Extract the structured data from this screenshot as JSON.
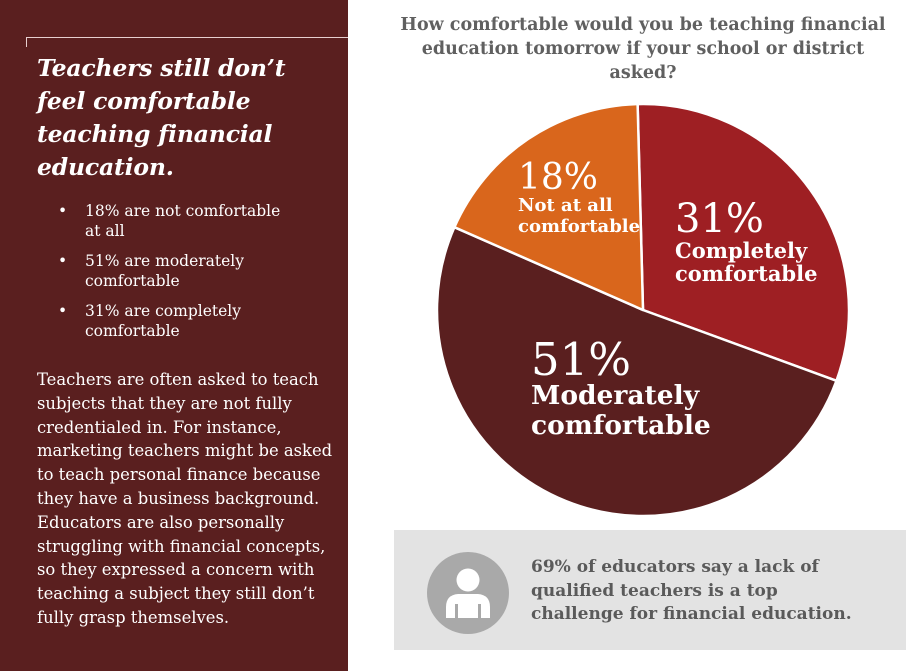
{
  "sidebar": {
    "headline": "Teachers still don’t feel comfortable teaching financial education.",
    "bullets": [
      "18% are not comfortable at all",
      "51% are moderately comfortable",
      "31% are completely comfortable"
    ],
    "body": "Teachers are often asked to teach subjects that they are not fully credentialed in. For instance, marketing teachers might be asked to teach personal finance because they have a business background.  Educators are also personally struggling with financial concepts, so they expressed a concern with teaching a subject they still don’t fully grasp themselves."
  },
  "chart_data": {
    "type": "pie",
    "title": "How comfortable would you be teaching financial education tomorrow if your school or district asked?",
    "slices": [
      {
        "label": "Completely comfortable",
        "label_lines": [
          "Completely",
          "comfortable"
        ],
        "value": 31,
        "display": "31%",
        "color": "#9e1f23"
      },
      {
        "label": "Moderately comfortable",
        "label_lines": [
          "Moderately",
          "comfortable"
        ],
        "value": 51,
        "display": "51%",
        "color": "#5a1f1f"
      },
      {
        "label": "Not at all comfortable",
        "label_lines": [
          "Not at all",
          "comfortable"
        ],
        "value": 18,
        "display": "18%",
        "color": "#d9661c"
      }
    ]
  },
  "callout": {
    "text": "69% of educators say a lack of qualified teachers is a top challenge for financial education.",
    "icon": "person-icon"
  },
  "colors": {
    "sidebar_bg": "#5a1f1f",
    "callout_bg": "#e3e3e3",
    "title_text": "#606060"
  }
}
